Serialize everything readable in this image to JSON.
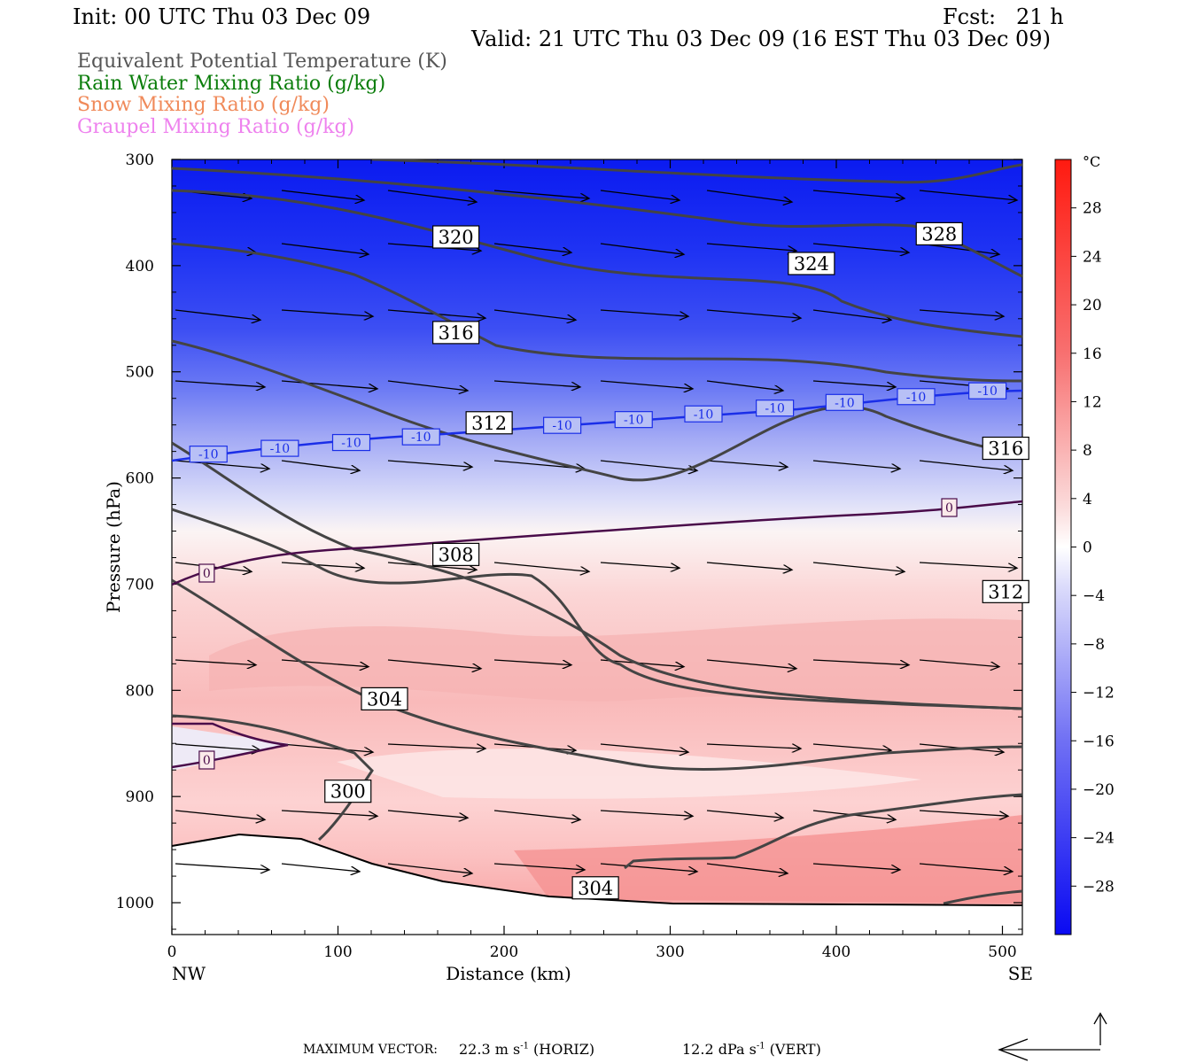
{
  "header": {
    "init": "Init: 00 UTC Thu 03 Dec 09",
    "fcst": "Fcst:   21 h",
    "valid": "Valid: 21 UTC Thu 03 Dec 09 (16 EST Thu 03 Dec 09)"
  },
  "legend": [
    {
      "text": "Equivalent Potential Temperature (K)",
      "color": "#555555"
    },
    {
      "text": "Rain Water Mixing Ratio (g/kg)",
      "color": "#0a7d0a"
    },
    {
      "text": "Snow Mixing Ratio (g/kg)",
      "color": "#f08a5a"
    },
    {
      "text": "Graupel Mixing Ratio (g/kg)",
      "color": "#ee82ee"
    }
  ],
  "footer": {
    "label": "MAXIMUM VECTOR:",
    "horiz_value": "22.3 m s",
    "horiz_exp": "-1",
    "horiz_tag": " (HORIZ)",
    "vert_value": "12.2 dPa s",
    "vert_exp": "-1",
    "vert_tag": " (VERT)"
  },
  "chart_data": {
    "type": "cross-section",
    "xlabel": "Distance (km)",
    "ylabel": "Pressure (hPa)",
    "xlim": [
      0,
      512
    ],
    "ylim": [
      1030,
      300
    ],
    "x_ticks": [
      0,
      100,
      200,
      300,
      400,
      500
    ],
    "y_ticks": [
      300,
      400,
      500,
      600,
      700,
      800,
      900,
      1000
    ],
    "x_end_labels": {
      "left": "NW",
      "right": "SE"
    },
    "colorbar": {
      "unit": "°C",
      "range": [
        -32,
        32
      ],
      "tick_labels": [
        28,
        24,
        20,
        16,
        12,
        8,
        4,
        0,
        -4,
        -8,
        -12,
        -16,
        -20,
        -24,
        -28
      ]
    },
    "theta_e_contours": [
      {
        "level": 328,
        "label_at": [
          462,
          370
        ]
      },
      {
        "level": 324,
        "label_at": [
          385,
          398
        ]
      },
      {
        "level": 320,
        "label_at": [
          171,
          373
        ]
      },
      {
        "level": 316,
        "label_at": [
          171,
          463
        ],
        "label2_at": [
          502,
          572
        ]
      },
      {
        "level": 312,
        "label_at": [
          191,
          548
        ],
        "label2_at": [
          502,
          707
        ]
      },
      {
        "level": 308,
        "label_at": [
          171,
          672
        ]
      },
      {
        "level": 304,
        "label_at": [
          128,
          808
        ],
        "label2_at": [
          255,
          986
        ]
      },
      {
        "level": 300,
        "label_at": [
          106,
          895
        ]
      }
    ],
    "isotherms": [
      {
        "level": -10,
        "label_text": "-10",
        "labels_x": [
          22,
          65,
          108,
          150,
          235,
          278,
          320,
          363,
          405,
          448,
          491
        ]
      },
      {
        "level": 0,
        "label_text": "0",
        "labels_x": [
          21,
          21,
          468
        ]
      }
    ]
  }
}
